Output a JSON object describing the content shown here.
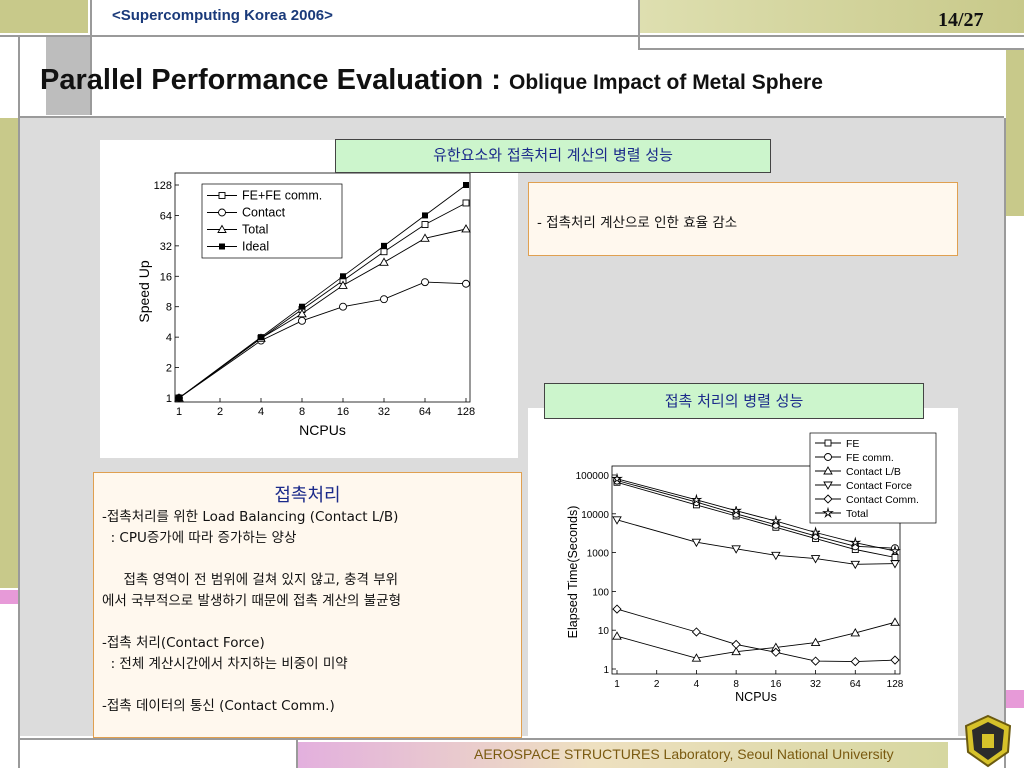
{
  "header": {
    "conference": "<Supercomputing Korea 2006>",
    "page": "14/27"
  },
  "title": {
    "main": "Parallel Performance Evaluation : ",
    "sub": "Oblique Impact of Metal Sphere"
  },
  "labels": {
    "top_green": "유한요소와 접촉처리 계산의 병렬 성능",
    "mid_green": "접촉 처리의 병렬 성능",
    "efficiency_note": "- 접촉처리 계산으로 인한 효율 감소"
  },
  "contact_box": {
    "heading": "접촉처리",
    "lines": [
      "-접촉처리를 위한 Load Balancing (Contact L/B)",
      "  : CPU증가에 따라 증가하는 양상",
      "",
      "     접촉 영역이 전 범위에 걸쳐 있지 않고, 충격 부위",
      "에서 국부적으로 발생하기 때문에 접촉 계산의 불균형",
      "",
      "-접촉 처리(Contact Force)",
      "  : 전체 계산시간에서 차지하는 비중이 미약",
      "",
      "-접촉 데이터의 통신 (Contact Comm.)"
    ]
  },
  "footer": {
    "lab_name": "AEROSPACE STRUCTURES Laboratory",
    "university": ", Seoul National University"
  },
  "colors": {
    "header_text": "#1a3a7a",
    "green_box": "#ccf5cc",
    "orange_border": "#e0a050",
    "footer_text": "#7a5a10"
  },
  "chart_data": [
    {
      "type": "line",
      "xlabel": "NCPUs",
      "ylabel": "Speed Up",
      "x": [
        1,
        2,
        4,
        8,
        16,
        32,
        64,
        128
      ],
      "x_ticks": [
        "1",
        "2",
        "4",
        "8",
        "16",
        "32",
        "64",
        "128"
      ],
      "y_ticks": [
        "1",
        "2",
        "4",
        "8",
        "16",
        "32",
        "64",
        "128"
      ],
      "y_scale": "log2",
      "ylim": [
        1,
        128
      ],
      "legend": "top-left",
      "grid": false,
      "series": [
        {
          "name": "FE+FE comm.",
          "marker": "square-open",
          "x": [
            1,
            4,
            8,
            16,
            32,
            64,
            128
          ],
          "values": [
            1,
            3.9,
            7.5,
            14.5,
            28,
            52,
            85
          ]
        },
        {
          "name": "Contact",
          "marker": "circle-open",
          "x": [
            1,
            4,
            8,
            16,
            32,
            64,
            128
          ],
          "values": [
            1,
            3.7,
            5.8,
            8,
            9.5,
            14,
            13.5
          ]
        },
        {
          "name": "Total",
          "marker": "triangle-open",
          "x": [
            1,
            4,
            8,
            16,
            32,
            64,
            128
          ],
          "values": [
            1,
            3.9,
            6.8,
            13,
            22,
            38,
            47
          ]
        },
        {
          "name": "Ideal",
          "marker": "square-filled",
          "x": [
            1,
            4,
            8,
            16,
            32,
            64,
            128
          ],
          "values": [
            1,
            4,
            8,
            16,
            32,
            64,
            128
          ]
        }
      ]
    },
    {
      "type": "line",
      "xlabel": "NCPUs",
      "ylabel": "Elapsed Time(Seconds)",
      "x": [
        1,
        4,
        8,
        16,
        32,
        64,
        128
      ],
      "x_ticks": [
        "1",
        "2",
        "4",
        "8",
        "16",
        "32",
        "64",
        "128"
      ],
      "y_ticks": [
        "1",
        "10",
        "100",
        "1000",
        "10000",
        "100000"
      ],
      "y_scale": "log10",
      "ylim": [
        1,
        100000
      ],
      "legend": "top-right",
      "grid": false,
      "series": [
        {
          "name": "FE",
          "marker": "square-open",
          "values": [
            65000,
            17000,
            8800,
            4500,
            2300,
            1200,
            750
          ]
        },
        {
          "name": "FE comm.",
          "marker": "circle-open",
          "values": [
            72000,
            20000,
            10000,
            5200,
            2700,
            1450,
            1300
          ]
        },
        {
          "name": "Contact L/B",
          "marker": "triangle-open",
          "values": [
            7,
            1.9,
            2.8,
            3.6,
            4.8,
            8.5,
            16
          ]
        },
        {
          "name": "Contact Force",
          "marker": "triangle-down-open",
          "values": [
            7000,
            1850,
            1250,
            850,
            700,
            500,
            520
          ]
        },
        {
          "name": "Contact Comm.",
          "marker": "diamond-open",
          "values": [
            35,
            9,
            4.3,
            2.7,
            1.6,
            1.55,
            1.7
          ]
        },
        {
          "name": "Total",
          "marker": "star-open",
          "values": [
            80000,
            23000,
            12000,
            6500,
            3300,
            1800,
            1100
          ]
        }
      ]
    }
  ]
}
